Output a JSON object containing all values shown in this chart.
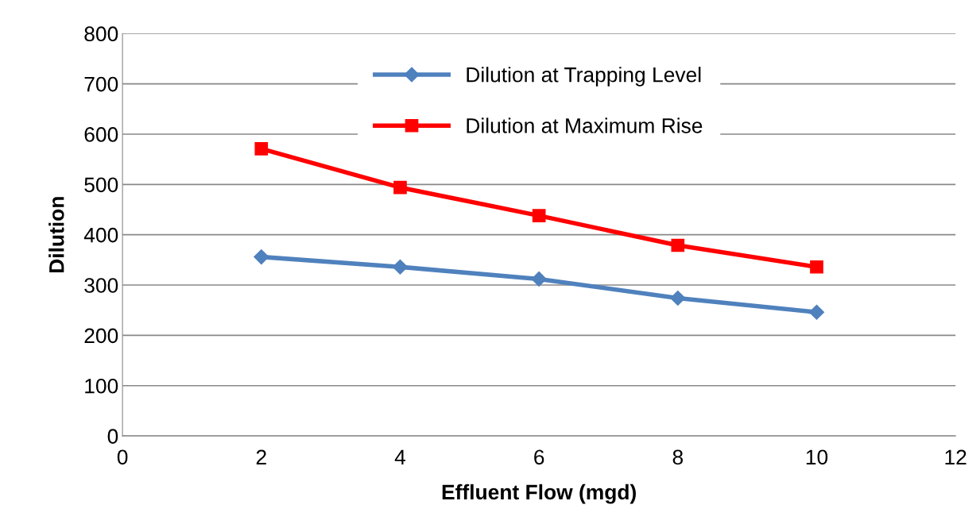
{
  "chart_data": {
    "type": "line",
    "xlabel": "Effluent Flow (mgd)",
    "ylabel": "Dilution",
    "x": [
      2,
      4,
      6,
      8,
      10
    ],
    "series": [
      {
        "name": "Dilution at Trapping Level",
        "color": "#4f81bd",
        "marker": "diamond",
        "values": [
          356,
          336,
          312,
          274,
          246
        ]
      },
      {
        "name": "Dilution at Maximum Rise",
        "color": "#ff0000",
        "marker": "square",
        "values": [
          571,
          494,
          438,
          379,
          336
        ]
      }
    ],
    "xlim": [
      0,
      12
    ],
    "xticks": [
      0,
      2,
      4,
      6,
      8,
      10,
      12
    ],
    "ylim": [
      0,
      800
    ],
    "yticks": [
      0,
      100,
      200,
      300,
      400,
      500,
      600,
      700,
      800
    ],
    "grid": "y",
    "legend": "top",
    "line_style": "solid"
  }
}
